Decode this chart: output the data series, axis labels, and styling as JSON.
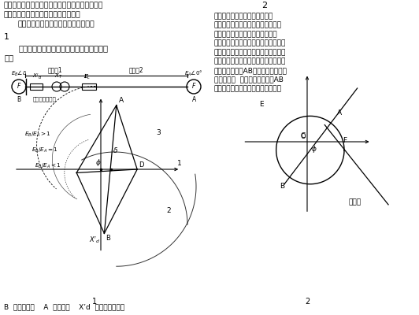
{
  "bg_color": "#ffffff",
  "top_text_left": [
    "厂站侧的厂用系统，危及机组安全运行。对大型机",
    "组应该配置功能比较齐全的失步保护。",
    "这里介绍一种三阵抗元件的失步保护。"
  ],
  "section1": "1",
  "section2": "2",
  "subtitle1": "发电机与系统发生失步的振荡中心轨迹图如",
  "subtitle2": "下：",
  "action_zone1": "动作区1",
  "action_zone2": "动作区2",
  "install_label": "失步保护安装处",
  "right_texts": [
    "根据图１的阵抗运行轨迹，可以",
    "抗元件和两根直线型阵抗元件构成三",
    "发电机的失步。阵抗元件图如图２",
    "件，把阵抗平面分为两个动作区，即动",
    "区１、动作区２。当振荡中心落于区１",
    "位于发变组内部；当落于区２时，振荡",
    "变以外的系统。AB为阵挡元件，把阵",
    "右两部分。  为阵抗角，失步线AB",
    "点０代表失步保护安装处，即机端。"
  ],
  "bottom_text1": "B  代表发电机    A  代表系统    X’d  代表发电机阵抗",
  "fig_label1": "1",
  "fig_label2": "2",
  "action_zone_right": "动作区"
}
